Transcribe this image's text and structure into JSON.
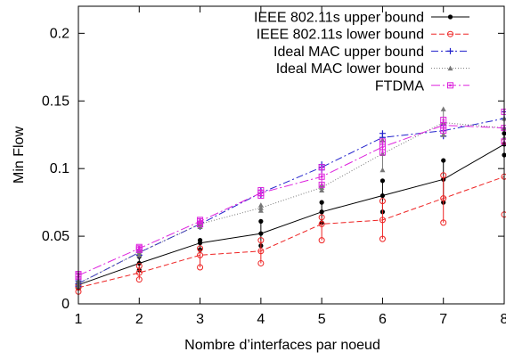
{
  "chart_data": {
    "type": "line",
    "title": "",
    "xlabel": "Nombre d’interfaces par noeud",
    "ylabel": "Min Flow",
    "xlim": [
      1,
      8
    ],
    "ylim": [
      0,
      0.22
    ],
    "xticks": [
      1,
      2,
      3,
      4,
      5,
      6,
      7,
      8
    ],
    "yticks": [
      0,
      0.05,
      0.1,
      0.15,
      0.2
    ],
    "ytick_labels": [
      "0",
      "0.05",
      "0.1",
      "0.15",
      "0.2"
    ],
    "grid": false,
    "legend_position": "top-right",
    "x": [
      1,
      2,
      3,
      4,
      5,
      6,
      7,
      8
    ],
    "series": [
      {
        "name": "IEEE 802.11s upper bound",
        "color": "#000000",
        "dash": "solid",
        "marker": "dot",
        "values": [
          0.014,
          0.03,
          0.045,
          0.052,
          0.068,
          0.08,
          0.092,
          0.118
        ],
        "err_low": [
          0.012,
          0.025,
          0.04,
          0.043,
          0.06,
          0.068,
          0.075,
          0.11
        ],
        "err_high": [
          0.016,
          0.035,
          0.047,
          0.061,
          0.075,
          0.091,
          0.106,
          0.126
        ]
      },
      {
        "name": "IEEE 802.11s lower bound",
        "color": "#ee2222",
        "dash": "dashed",
        "marker": "circle",
        "values": [
          0.012,
          0.023,
          0.036,
          0.039,
          0.059,
          0.062,
          0.078,
          0.094
        ],
        "err_low": [
          0.009,
          0.018,
          0.027,
          0.03,
          0.047,
          0.048,
          0.06,
          0.066
        ],
        "err_high": [
          0.014,
          0.028,
          0.041,
          0.047,
          0.064,
          0.076,
          0.095,
          0.12
        ]
      },
      {
        "name": "Ideal MAC upper bound",
        "color": "#2222cc",
        "dash": "dashdot",
        "marker": "plus",
        "values": [
          0.015,
          0.038,
          0.059,
          0.082,
          0.101,
          0.123,
          0.128,
          0.137
        ],
        "err_low": [
          0.013,
          0.036,
          0.057,
          0.08,
          0.099,
          0.12,
          0.124,
          0.13
        ],
        "err_high": [
          0.017,
          0.04,
          0.061,
          0.084,
          0.103,
          0.126,
          0.132,
          0.142
        ]
      },
      {
        "name": "Ideal MAC lower bound",
        "color": "#777777",
        "dash": "dotted",
        "marker": "triangle",
        "values": [
          0.015,
          0.038,
          0.059,
          0.071,
          0.086,
          0.111,
          0.134,
          0.13
        ],
        "err_low": [
          0.013,
          0.036,
          0.057,
          0.069,
          0.084,
          0.099,
          0.125,
          0.123
        ],
        "err_high": [
          0.017,
          0.04,
          0.061,
          0.073,
          0.088,
          0.121,
          0.144,
          0.137
        ]
      },
      {
        "name": "FTDMA",
        "color": "#dd22dd",
        "dash": "dashdot2",
        "marker": "square",
        "values": [
          0.021,
          0.041,
          0.061,
          0.082,
          0.094,
          0.116,
          0.132,
          0.13
        ],
        "err_low": [
          0.02,
          0.04,
          0.059,
          0.08,
          0.088,
          0.112,
          0.128,
          0.12
        ],
        "err_high": [
          0.022,
          0.042,
          0.062,
          0.084,
          0.101,
          0.12,
          0.136,
          0.142
        ]
      }
    ]
  }
}
